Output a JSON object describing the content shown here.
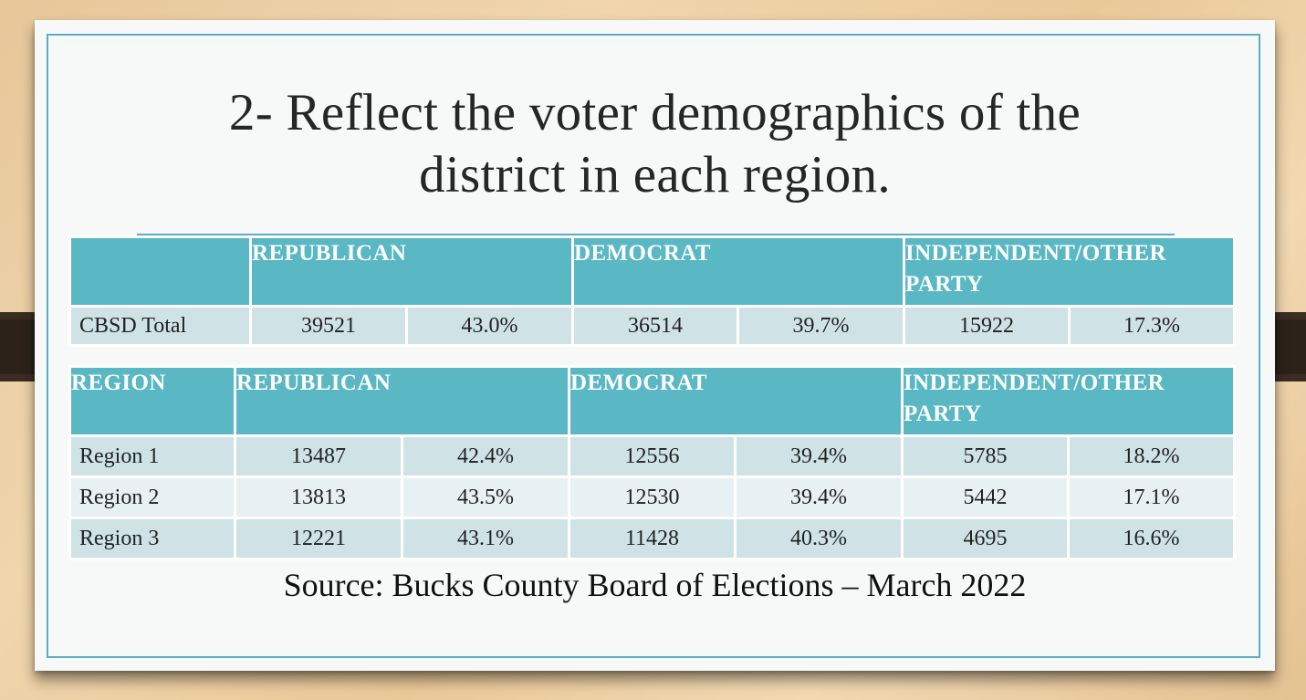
{
  "slide": {
    "title_line1": "2- Reflect the voter demographics of  the",
    "title_line2": "district in each region.",
    "source": "Source: Bucks County Board of  Elections – March 2022"
  },
  "total_table": {
    "headers": [
      "",
      "REPUBLICAN",
      "DEMOCRAT",
      "INDEPENDENT/OTHER PARTY"
    ],
    "row": {
      "label": "CBSD Total",
      "values": [
        "39521",
        "43.0%",
        "36514",
        "39.7%",
        "15922",
        "17.3%"
      ]
    }
  },
  "region_table": {
    "headers": [
      "REGION",
      "REPUBLICAN",
      "DEMOCRAT",
      "INDEPENDENT/OTHER PARTY"
    ],
    "rows": [
      {
        "label": "Region 1",
        "values": [
          "13487",
          "42.4%",
          "12556",
          "39.4%",
          "5785",
          "18.2%"
        ]
      },
      {
        "label": "Region 2",
        "values": [
          "13813",
          "43.5%",
          "12530",
          "39.4%",
          "5442",
          "17.1%"
        ]
      },
      {
        "label": "Region 3",
        "values": [
          "12221",
          "43.1%",
          "11428",
          "40.3%",
          "4695",
          "16.6%"
        ]
      }
    ]
  },
  "colors": {
    "accent": "#5ab7c4",
    "frame": "#5aaec0",
    "row_dark": "#cfe3e7",
    "row_light": "#e7f1f3"
  }
}
